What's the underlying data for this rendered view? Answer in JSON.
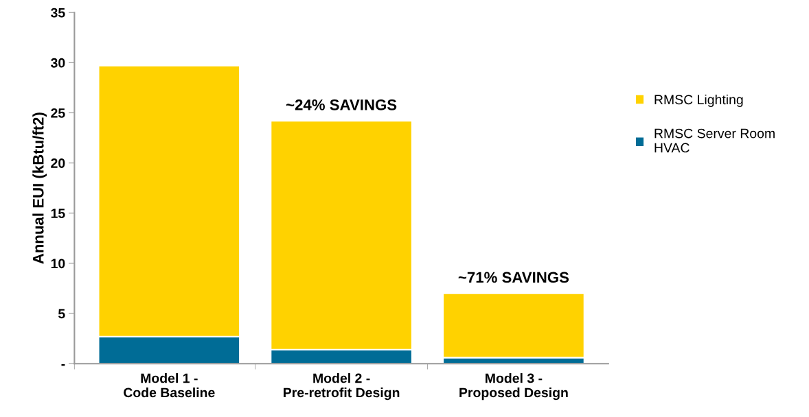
{
  "chart_data": {
    "type": "bar",
    "stacked": true,
    "ylabel": "Annual EUI (kBtu/ft2)",
    "categories": [
      "Model 1 -\nCode Baseline",
      "Model 2 -\nPre-retrofit Design",
      "Model 3 -\nProposed Design"
    ],
    "series": [
      {
        "name": "RMSC Server Room\nHVAC",
        "color": "#006c96",
        "values": [
          2.7,
          1.4,
          0.6
        ]
      },
      {
        "name": "RMSC Lighting",
        "color": "#ffd200",
        "values": [
          27.0,
          22.8,
          6.4
        ]
      }
    ],
    "ylim": [
      0,
      35
    ],
    "yticks": [
      {
        "value": 0,
        "label": "-"
      },
      5,
      10,
      15,
      20,
      25,
      30,
      35
    ],
    "annotations": [
      {
        "text": "~24% SAVINGS",
        "x": "Model 2 -\nPre-retrofit Design",
        "y": 24.2
      },
      {
        "text": "~71% SAVINGS",
        "x": "Model 3 -\nProposed Design",
        "y": 7.0
      }
    ],
    "grid": false,
    "legend": "right"
  }
}
